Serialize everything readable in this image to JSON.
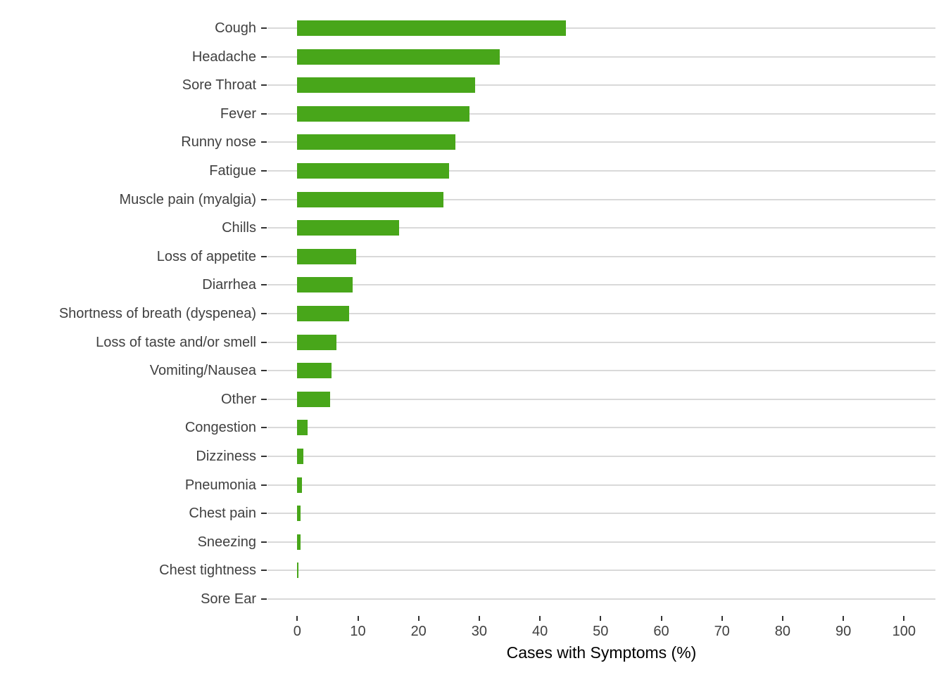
{
  "chart_data": {
    "type": "bar",
    "orientation": "horizontal",
    "title": "",
    "xlabel": "Cases with Symptoms (%)",
    "ylabel": "",
    "xlim": [
      0,
      100
    ],
    "x_ticks": [
      0,
      10,
      20,
      30,
      40,
      50,
      60,
      70,
      80,
      90,
      100
    ],
    "grid": "horizontal-major-only",
    "legend": "none",
    "categories": [
      "Cough",
      "Headache",
      "Sore Throat",
      "Fever",
      "Runny nose",
      "Fatigue",
      "Muscle pain (myalgia)",
      "Chills",
      "Loss of appetite",
      "Diarrhea",
      "Shortness of breath (dyspenea)",
      "Loss of taste and/or smell",
      "Vomiting/Nausea",
      "Other",
      "Congestion",
      "Dizziness",
      "Pneumonia",
      "Chest pain",
      "Sneezing",
      "Chest tightness",
      "Sore Ear"
    ],
    "values": [
      44.3,
      33.4,
      29.3,
      28.4,
      26.1,
      25.0,
      24.1,
      16.8,
      9.7,
      9.1,
      8.5,
      6.5,
      5.6,
      5.4,
      1.7,
      1.0,
      0.8,
      0.6,
      0.5,
      0.2,
      0.0
    ],
    "colors": {
      "bar": "#48A61A",
      "gridline": "#D9D9D9",
      "tick": "#333333",
      "axis_text": "#404040",
      "axis_title": "#000000",
      "background": "#FFFFFF"
    }
  }
}
